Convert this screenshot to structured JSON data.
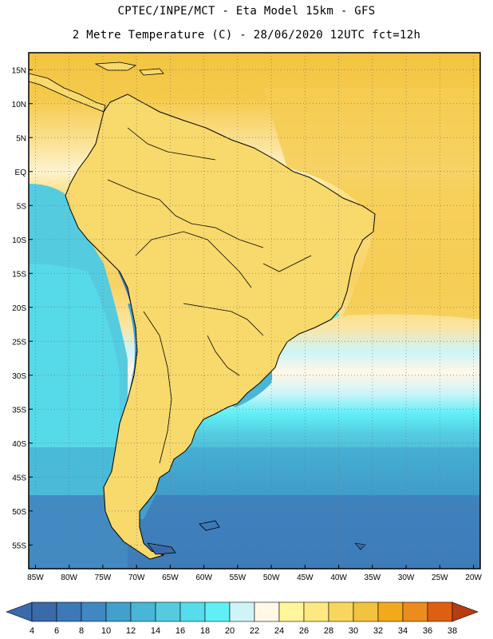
{
  "title_line1": "CPTEC/INPE/MCT  -  Eta Model 15km - GFS",
  "title_line2": "2 Metre Temperature (C) - 28/06/2020 12UTC fct=12h",
  "map": {
    "lon_range": [
      -86,
      -19
    ],
    "lat_range": [
      -58.5,
      17.5
    ],
    "lat_ticks": [
      "15N",
      "10N",
      "5N",
      "EQ",
      "5S",
      "10S",
      "15S",
      "20S",
      "25S",
      "30S",
      "35S",
      "40S",
      "45S",
      "50S",
      "55S"
    ],
    "lat_values": [
      15,
      10,
      5,
      0,
      -5,
      -10,
      -15,
      -20,
      -25,
      -30,
      -35,
      -40,
      -45,
      -50,
      -55
    ],
    "lon_ticks": [
      "85W",
      "80W",
      "75W",
      "70W",
      "65W",
      "60W",
      "55W",
      "50W",
      "45W",
      "40W",
      "35W",
      "30W",
      "25W",
      "20W"
    ],
    "lon_values": [
      -85,
      -80,
      -75,
      -70,
      -65,
      -60,
      -55,
      -50,
      -45,
      -40,
      -35,
      -30,
      -25,
      -20
    ]
  },
  "colorbar": {
    "labels": [
      "4",
      "6",
      "8",
      "10",
      "12",
      "14",
      "16",
      "18",
      "20",
      "22",
      "24",
      "26",
      "28",
      "30",
      "32",
      "34",
      "36",
      "38"
    ],
    "colors": [
      "#3a6aa9",
      "#3d78b8",
      "#3f88c4",
      "#41a0cc",
      "#48b6d6",
      "#55cbe0",
      "#56dcea",
      "#5ff0f6",
      "#cff4f8",
      "#fff8e6",
      "#fff59a",
      "#fde980",
      "#f8d65e",
      "#f2c33e",
      "#f2aa1c",
      "#ec8c1c",
      "#dd6010",
      "#c8400a",
      "#b83c12"
    ]
  }
}
